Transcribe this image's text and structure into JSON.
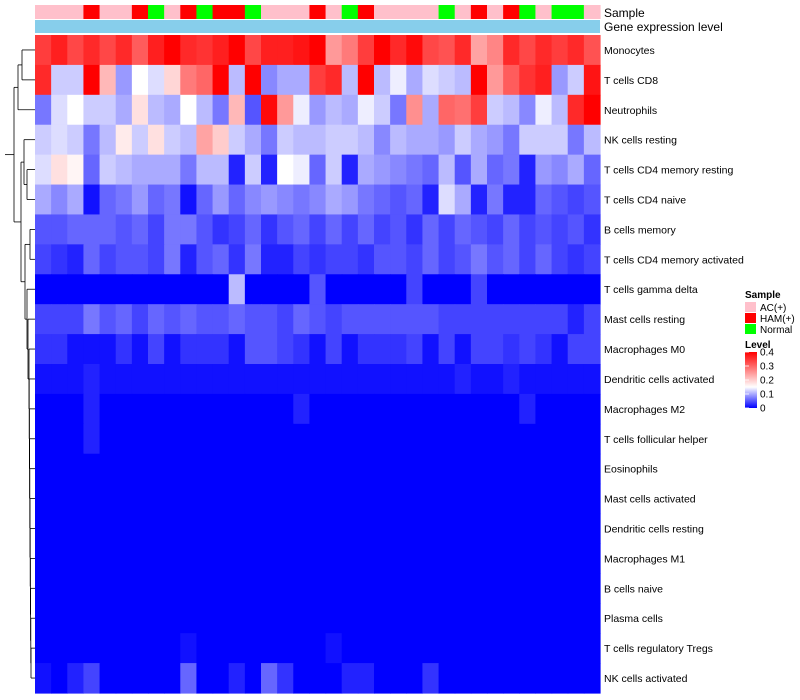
{
  "chart_data": {
    "type": "heatmap",
    "annotation_labels": [
      "Sample",
      "Gene expression level"
    ],
    "rows": [
      "Monocytes",
      "T cells CD8",
      "Neutrophils",
      "NK cells resting",
      "T cells CD4 memory resting",
      "T cells CD4 naive",
      "B cells memory",
      "T cells CD4 memory activated",
      "T cells gamma delta",
      "Mast cells resting",
      "Macrophages M0",
      "Dendritic cells activated",
      "Macrophages M2",
      "T cells follicular helper",
      "Eosinophils",
      "Mast cells activated",
      "Dendritic cells resting",
      "Macrophages M1",
      "B cells naive",
      "Plasma cells",
      "T cells regulatory  Tregs",
      "NK cells activated"
    ],
    "samples": [
      "AC",
      "AC",
      "AC",
      "HAM",
      "AC",
      "AC",
      "HAM",
      "Normal",
      "AC",
      "HAM",
      "Normal",
      "HAM",
      "HAM",
      "Normal",
      "AC",
      "AC",
      "AC",
      "HAM",
      "AC",
      "Normal",
      "HAM",
      "AC",
      "AC",
      "AC",
      "AC",
      "Normal",
      "AC",
      "HAM",
      "AC",
      "HAM",
      "Normal",
      "AC",
      "Normal",
      "Normal",
      "AC"
    ],
    "sample_legend": {
      "title": "Sample",
      "categories": [
        {
          "key": "AC",
          "label": "AC(+)",
          "color": "#ffc0cb"
        },
        {
          "key": "HAM",
          "label": "HAM(+)",
          "color": "#ff0000"
        },
        {
          "key": "Normal",
          "label": "Normal",
          "color": "#00ff00"
        }
      ]
    },
    "gene_level_color": "#87ceeb",
    "level_legend": {
      "title": "Level",
      "range": [
        0,
        0.4
      ],
      "ticks": [
        "0.4",
        "0.3",
        "0.2",
        "0.1",
        "0"
      ],
      "tick_values": [
        0.4,
        0.3,
        0.2,
        0.1,
        0
      ]
    },
    "color_scale": {
      "low": "#0000ff",
      "mid": "#ffffff",
      "high": "#ff0000",
      "mid_value": 0.15
    },
    "values": [
      [
        0.34,
        0.37,
        0.33,
        0.36,
        0.33,
        0.36,
        0.31,
        0.37,
        0.4,
        0.36,
        0.35,
        0.37,
        0.4,
        0.33,
        0.37,
        0.37,
        0.38,
        0.4,
        0.25,
        0.28,
        0.34,
        0.41,
        0.36,
        0.39,
        0.33,
        0.32,
        0.36,
        0.24,
        0.27,
        0.36,
        0.33,
        0.36,
        0.34,
        0.36,
        0.32
      ],
      [
        0.36,
        0.12,
        0.12,
        0.42,
        0.22,
        0.09,
        0.15,
        0.13,
        0.19,
        0.28,
        0.3,
        0.42,
        0.11,
        0.41,
        0.08,
        0.1,
        0.1,
        0.34,
        0.36,
        0.11,
        0.4,
        0.11,
        0.14,
        0.1,
        0.13,
        0.12,
        0.11,
        0.41,
        0.25,
        0.31,
        0.35,
        0.37,
        0.09,
        0.12,
        0.38
      ],
      [
        0.07,
        0.13,
        0.15,
        0.12,
        0.12,
        0.1,
        0.18,
        0.11,
        0.1,
        0.15,
        0.11,
        0.07,
        0.22,
        0.05,
        0.39,
        0.25,
        0.14,
        0.09,
        0.11,
        0.1,
        0.14,
        0.12,
        0.07,
        0.26,
        0.1,
        0.3,
        0.29,
        0.34,
        0.12,
        0.11,
        0.08,
        0.14,
        0.11,
        0.36,
        0.41
      ],
      [
        0.12,
        0.13,
        0.12,
        0.07,
        0.11,
        0.17,
        0.12,
        0.18,
        0.12,
        0.11,
        0.24,
        0.2,
        0.12,
        0.1,
        0.07,
        0.12,
        0.11,
        0.11,
        0.12,
        0.12,
        0.11,
        0.08,
        0.11,
        0.1,
        0.1,
        0.09,
        0.12,
        0.1,
        0.09,
        0.07,
        0.12,
        0.12,
        0.12,
        0.07,
        0.11
      ],
      [
        0.13,
        0.18,
        0.16,
        0.06,
        0.12,
        0.11,
        0.1,
        0.1,
        0.1,
        0.07,
        0.11,
        0.11,
        0.02,
        0.12,
        0.02,
        0.15,
        0.14,
        0.06,
        0.12,
        0.02,
        0.1,
        0.09,
        0.08,
        0.07,
        0.06,
        0.11,
        0.05,
        0.1,
        0.06,
        0.07,
        0.02,
        0.09,
        0.08,
        0.1,
        0.06
      ],
      [
        0.1,
        0.08,
        0.1,
        0.01,
        0.06,
        0.07,
        0.09,
        0.06,
        0.07,
        0.01,
        0.06,
        0.09,
        0.06,
        0.08,
        0.09,
        0.08,
        0.07,
        0.08,
        0.1,
        0.09,
        0.07,
        0.06,
        0.05,
        0.06,
        0.02,
        0.13,
        0.1,
        0.02,
        0.07,
        0.02,
        0.02,
        0.06,
        0.05,
        0.04,
        0.05
      ],
      [
        0.05,
        0.05,
        0.06,
        0.06,
        0.06,
        0.05,
        0.06,
        0.04,
        0.07,
        0.07,
        0.05,
        0.03,
        0.04,
        0.06,
        0.03,
        0.05,
        0.06,
        0.04,
        0.06,
        0.04,
        0.06,
        0.04,
        0.05,
        0.03,
        0.06,
        0.04,
        0.06,
        0.05,
        0.04,
        0.06,
        0.04,
        0.05,
        0.04,
        0.05,
        0.03
      ],
      [
        0.04,
        0.03,
        0.02,
        0.06,
        0.04,
        0.05,
        0.05,
        0.04,
        0.07,
        0.02,
        0.05,
        0.06,
        0.03,
        0.07,
        0.02,
        0.02,
        0.04,
        0.03,
        0.04,
        0.04,
        0.03,
        0.05,
        0.05,
        0.04,
        0.06,
        0.04,
        0.05,
        0.07,
        0.05,
        0.06,
        0.04,
        0.06,
        0.04,
        0.03,
        0.04
      ],
      [
        0.0,
        0.0,
        0.0,
        0.0,
        0.0,
        0.0,
        0.0,
        0.0,
        0.0,
        0.0,
        0.0,
        0.0,
        0.11,
        0.0,
        0.0,
        0.0,
        0.0,
        0.05,
        0.0,
        0.0,
        0.0,
        0.0,
        0.0,
        0.04,
        0.0,
        0.0,
        0.0,
        0.04,
        0.0,
        0.0,
        0.0,
        0.0,
        0.0,
        0.0,
        0.0
      ],
      [
        0.04,
        0.04,
        0.04,
        0.07,
        0.05,
        0.06,
        0.04,
        0.06,
        0.05,
        0.06,
        0.05,
        0.05,
        0.06,
        0.05,
        0.05,
        0.04,
        0.06,
        0.05,
        0.04,
        0.05,
        0.05,
        0.05,
        0.05,
        0.05,
        0.05,
        0.04,
        0.04,
        0.04,
        0.04,
        0.04,
        0.04,
        0.04,
        0.04,
        0.02,
        0.04
      ],
      [
        0.03,
        0.03,
        0.01,
        0.01,
        0.01,
        0.03,
        0.01,
        0.04,
        0.01,
        0.03,
        0.03,
        0.03,
        0.01,
        0.05,
        0.05,
        0.04,
        0.03,
        0.01,
        0.04,
        0.01,
        0.03,
        0.03,
        0.03,
        0.04,
        0.01,
        0.04,
        0.01,
        0.04,
        0.04,
        0.03,
        0.04,
        0.03,
        0.01,
        0.04,
        0.04
      ],
      [
        0.01,
        0.01,
        0.01,
        0.02,
        0.01,
        0.01,
        0.01,
        0.01,
        0.01,
        0.01,
        0.01,
        0.01,
        0.01,
        0.01,
        0.01,
        0.01,
        0.01,
        0.01,
        0.01,
        0.01,
        0.01,
        0.01,
        0.01,
        0.01,
        0.01,
        0.01,
        0.02,
        0.01,
        0.01,
        0.02,
        0.01,
        0.01,
        0.01,
        0.01,
        0.01
      ],
      [
        0.0,
        0.0,
        0.0,
        0.02,
        0.0,
        0.0,
        0.0,
        0.0,
        0.0,
        0.0,
        0.0,
        0.0,
        0.0,
        0.0,
        0.0,
        0.0,
        0.02,
        0.0,
        0.0,
        0.0,
        0.0,
        0.0,
        0.0,
        0.0,
        0.0,
        0.0,
        0.0,
        0.0,
        0.0,
        0.0,
        0.02,
        0.0,
        0.0,
        0.0,
        0.0
      ],
      [
        0.0,
        0.0,
        0.0,
        0.02,
        0.0,
        0.0,
        0.0,
        0.0,
        0.0,
        0.0,
        0.0,
        0.0,
        0.0,
        0.0,
        0.0,
        0.0,
        0.0,
        0.0,
        0.0,
        0.0,
        0.0,
        0.0,
        0.0,
        0.0,
        0.0,
        0.0,
        0.0,
        0.0,
        0.0,
        0.0,
        0.0,
        0.0,
        0.0,
        0.0,
        0.0
      ],
      [
        0.0,
        0.0,
        0.0,
        0.0,
        0.0,
        0.0,
        0.0,
        0.0,
        0.0,
        0.0,
        0.0,
        0.0,
        0.0,
        0.0,
        0.0,
        0.0,
        0.0,
        0.0,
        0.0,
        0.0,
        0.0,
        0.0,
        0.0,
        0.0,
        0.0,
        0.0,
        0.0,
        0.0,
        0.0,
        0.0,
        0.0,
        0.0,
        0.0,
        0.0,
        0.0
      ],
      [
        0.0,
        0.0,
        0.0,
        0.0,
        0.0,
        0.0,
        0.0,
        0.0,
        0.0,
        0.0,
        0.0,
        0.0,
        0.0,
        0.0,
        0.0,
        0.0,
        0.0,
        0.0,
        0.0,
        0.0,
        0.0,
        0.0,
        0.0,
        0.0,
        0.0,
        0.0,
        0.0,
        0.0,
        0.0,
        0.0,
        0.0,
        0.0,
        0.0,
        0.0,
        0.0
      ],
      [
        0.0,
        0.0,
        0.0,
        0.0,
        0.0,
        0.0,
        0.0,
        0.0,
        0.0,
        0.0,
        0.0,
        0.0,
        0.0,
        0.0,
        0.0,
        0.0,
        0.0,
        0.0,
        0.0,
        0.0,
        0.0,
        0.0,
        0.0,
        0.0,
        0.0,
        0.0,
        0.0,
        0.0,
        0.0,
        0.0,
        0.0,
        0.0,
        0.0,
        0.0,
        0.0
      ],
      [
        0.0,
        0.0,
        0.0,
        0.0,
        0.0,
        0.0,
        0.0,
        0.0,
        0.0,
        0.0,
        0.0,
        0.0,
        0.0,
        0.0,
        0.0,
        0.0,
        0.0,
        0.0,
        0.0,
        0.0,
        0.0,
        0.0,
        0.0,
        0.0,
        0.0,
        0.0,
        0.0,
        0.0,
        0.0,
        0.0,
        0.0,
        0.0,
        0.0,
        0.0,
        0.0
      ],
      [
        0.0,
        0.0,
        0.0,
        0.0,
        0.0,
        0.0,
        0.0,
        0.0,
        0.0,
        0.0,
        0.0,
        0.0,
        0.0,
        0.0,
        0.0,
        0.0,
        0.0,
        0.0,
        0.0,
        0.0,
        0.0,
        0.0,
        0.0,
        0.0,
        0.0,
        0.0,
        0.0,
        0.0,
        0.0,
        0.0,
        0.0,
        0.0,
        0.0,
        0.0,
        0.0
      ],
      [
        0.0,
        0.0,
        0.0,
        0.0,
        0.0,
        0.0,
        0.0,
        0.0,
        0.0,
        0.0,
        0.0,
        0.0,
        0.0,
        0.0,
        0.0,
        0.0,
        0.0,
        0.0,
        0.0,
        0.0,
        0.0,
        0.0,
        0.0,
        0.0,
        0.0,
        0.0,
        0.0,
        0.0,
        0.0,
        0.0,
        0.0,
        0.0,
        0.0,
        0.0,
        0.0
      ],
      [
        0.0,
        0.0,
        0.0,
        0.0,
        0.0,
        0.0,
        0.0,
        0.0,
        0.0,
        0.01,
        0.0,
        0.0,
        0.0,
        0.0,
        0.0,
        0.0,
        0.0,
        0.0,
        0.01,
        0.0,
        0.0,
        0.0,
        0.0,
        0.0,
        0.0,
        0.0,
        0.0,
        0.0,
        0.0,
        0.0,
        0.0,
        0.0,
        0.0,
        0.0,
        0.0
      ],
      [
        0.01,
        0.0,
        0.02,
        0.04,
        0.0,
        0.0,
        0.0,
        0.0,
        0.0,
        0.06,
        0.0,
        0.0,
        0.02,
        0.0,
        0.06,
        0.03,
        0.0,
        0.0,
        0.0,
        0.02,
        0.02,
        0.0,
        0.0,
        0.0,
        0.03,
        0.0,
        0.0,
        0.0,
        0.0,
        0.0,
        0.0,
        0.0,
        0.0,
        0.0,
        0.0
      ]
    ]
  }
}
